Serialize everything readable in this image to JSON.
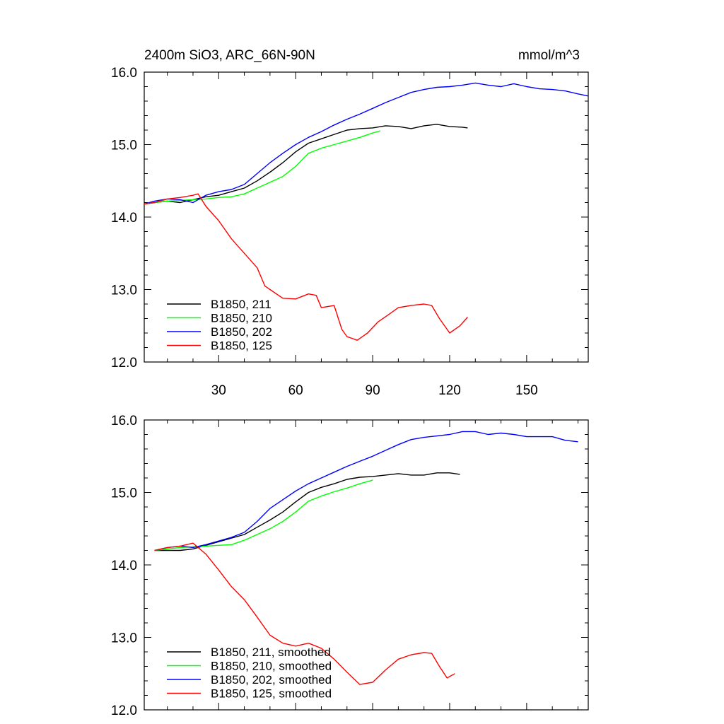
{
  "figure": {
    "title_left": "2400m SiO3, ARC_66N-90N",
    "title_right": "mmol/m^3"
  },
  "chart_data": [
    {
      "type": "line",
      "xlim": [
        1,
        174
      ],
      "ylim": [
        12.0,
        16.0
      ],
      "xticks": [
        30,
        60,
        90,
        120,
        150
      ],
      "xtick_labels": [
        "30",
        "60",
        "90",
        "120",
        "150"
      ],
      "yticks": [
        12.0,
        13.0,
        14.0,
        15.0,
        16.0
      ],
      "ytick_labels": [
        "12.0",
        "13.0",
        "14.0",
        "15.0",
        "16.0"
      ],
      "legend_position": "bottom-left",
      "series": [
        {
          "name": "B1850, 211",
          "color": "#000000",
          "x": [
            1,
            5,
            10,
            15,
            20,
            25,
            30,
            35,
            40,
            45,
            50,
            55,
            60,
            65,
            70,
            75,
            80,
            85,
            90,
            95,
            100,
            105,
            110,
            115,
            120,
            125,
            127
          ],
          "y": [
            14.18,
            14.2,
            14.22,
            14.2,
            14.24,
            14.28,
            14.3,
            14.35,
            14.4,
            14.5,
            14.62,
            14.75,
            14.9,
            15.02,
            15.08,
            15.14,
            15.2,
            15.22,
            15.23,
            15.26,
            15.25,
            15.22,
            15.26,
            15.28,
            15.25,
            15.24,
            15.23
          ]
        },
        {
          "name": "B1850, 210",
          "color": "#00ff00",
          "x": [
            1,
            5,
            10,
            15,
            20,
            25,
            30,
            35,
            40,
            45,
            50,
            55,
            60,
            65,
            70,
            75,
            80,
            85,
            90,
            93
          ],
          "y": [
            14.18,
            14.2,
            14.22,
            14.23,
            14.24,
            14.25,
            14.27,
            14.28,
            14.32,
            14.4,
            14.48,
            14.56,
            14.7,
            14.88,
            14.95,
            15.0,
            15.05,
            15.1,
            15.16,
            15.19
          ]
        },
        {
          "name": "B1850, 202",
          "color": "#0000ff",
          "x": [
            1,
            5,
            10,
            15,
            20,
            25,
            30,
            35,
            40,
            45,
            50,
            55,
            60,
            65,
            70,
            75,
            80,
            85,
            90,
            95,
            100,
            105,
            110,
            115,
            120,
            125,
            130,
            135,
            140,
            145,
            150,
            155,
            160,
            165,
            170,
            174
          ],
          "y": [
            14.18,
            14.22,
            14.25,
            14.24,
            14.2,
            14.3,
            14.35,
            14.38,
            14.45,
            14.6,
            14.75,
            14.88,
            15.0,
            15.1,
            15.18,
            15.27,
            15.35,
            15.42,
            15.5,
            15.58,
            15.65,
            15.72,
            15.76,
            15.79,
            15.8,
            15.82,
            15.85,
            15.82,
            15.8,
            15.84,
            15.8,
            15.77,
            15.76,
            15.74,
            15.7,
            15.67
          ]
        },
        {
          "name": "B1850, 125",
          "color": "#ff0000",
          "x": [
            1,
            5,
            10,
            15,
            20,
            22,
            25,
            30,
            35,
            40,
            45,
            48,
            50,
            55,
            60,
            65,
            68,
            70,
            75,
            78,
            80,
            84,
            88,
            92,
            96,
            100,
            105,
            110,
            113,
            116,
            120,
            124,
            127
          ],
          "y": [
            14.18,
            14.2,
            14.25,
            14.27,
            14.3,
            14.32,
            14.15,
            13.95,
            13.7,
            13.5,
            13.3,
            13.05,
            13.0,
            12.88,
            12.87,
            12.94,
            12.92,
            12.75,
            12.78,
            12.45,
            12.35,
            12.3,
            12.4,
            12.55,
            12.65,
            12.75,
            12.78,
            12.8,
            12.78,
            12.6,
            12.4,
            12.5,
            12.62
          ]
        }
      ]
    },
    {
      "type": "line",
      "xlim": [
        1,
        174
      ],
      "ylim": [
        12.0,
        16.0
      ],
      "xticks": [
        30,
        60,
        90,
        120,
        150
      ],
      "yticks": [
        12.0,
        13.0,
        14.0,
        15.0,
        16.0
      ],
      "ytick_labels": [
        "12.0",
        "13.0",
        "14.0",
        "15.0",
        "16.0"
      ],
      "legend_position": "bottom-left",
      "series": [
        {
          "name": "B1850, 211, smoothed",
          "color": "#000000",
          "x": [
            5,
            10,
            15,
            20,
            25,
            30,
            35,
            40,
            45,
            50,
            55,
            60,
            65,
            70,
            75,
            80,
            85,
            90,
            95,
            100,
            105,
            110,
            115,
            120,
            124
          ],
          "y": [
            14.2,
            14.2,
            14.2,
            14.22,
            14.27,
            14.32,
            14.37,
            14.42,
            14.52,
            14.62,
            14.73,
            14.87,
            15.0,
            15.07,
            15.12,
            15.18,
            15.21,
            15.22,
            15.24,
            15.26,
            15.24,
            15.24,
            15.27,
            15.27,
            15.25
          ]
        },
        {
          "name": "B1850, 210, smoothed",
          "color": "#00ff00",
          "x": [
            5,
            10,
            15,
            20,
            25,
            30,
            35,
            40,
            45,
            50,
            55,
            60,
            65,
            70,
            75,
            80,
            85,
            90
          ],
          "y": [
            14.2,
            14.22,
            14.24,
            14.25,
            14.26,
            14.27,
            14.28,
            14.34,
            14.42,
            14.5,
            14.6,
            14.73,
            14.88,
            14.95,
            15.01,
            15.06,
            15.12,
            15.17
          ]
        },
        {
          "name": "B1850, 202, smoothed",
          "color": "#0000ff",
          "x": [
            5,
            10,
            15,
            20,
            25,
            30,
            35,
            40,
            45,
            50,
            55,
            60,
            65,
            70,
            75,
            80,
            85,
            90,
            95,
            100,
            105,
            110,
            115,
            120,
            125,
            130,
            135,
            140,
            145,
            150,
            155,
            160,
            165,
            170
          ],
          "y": [
            14.2,
            14.24,
            14.26,
            14.24,
            14.28,
            14.33,
            14.38,
            14.45,
            14.6,
            14.78,
            14.9,
            15.02,
            15.12,
            15.2,
            15.28,
            15.36,
            15.43,
            15.5,
            15.58,
            15.66,
            15.73,
            15.76,
            15.78,
            15.8,
            15.84,
            15.84,
            15.8,
            15.82,
            15.8,
            15.77,
            15.77,
            15.77,
            15.72,
            15.7
          ]
        },
        {
          "name": "B1850, 125, smoothed",
          "color": "#ff0000",
          "x": [
            5,
            10,
            15,
            20,
            25,
            30,
            35,
            40,
            45,
            50,
            55,
            60,
            65,
            70,
            75,
            80,
            85,
            90,
            95,
            100,
            105,
            110,
            113,
            116,
            119,
            122
          ],
          "y": [
            14.2,
            14.24,
            14.26,
            14.3,
            14.15,
            13.93,
            13.7,
            13.52,
            13.28,
            13.03,
            12.92,
            12.88,
            12.92,
            12.85,
            12.7,
            12.52,
            12.35,
            12.38,
            12.55,
            12.7,
            12.76,
            12.79,
            12.78,
            12.6,
            12.44,
            12.5
          ]
        }
      ]
    }
  ]
}
